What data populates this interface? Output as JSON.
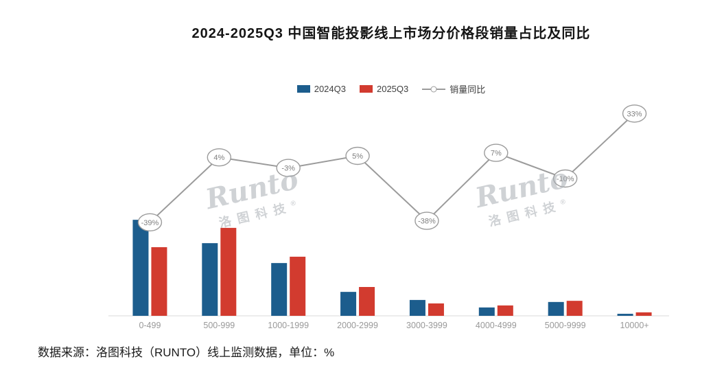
{
  "title": "2024-2025Q3 中国智能投影线上市场分价格段销量占比及同比",
  "footer": "数据来源：洛图科技（RUNTO）线上监测数据，单位：%",
  "watermark": {
    "line1": "Runto",
    "line2": "洛图科技",
    "reg": "®"
  },
  "colors": {
    "bar_2024q3": "#1C5D8D",
    "bar_2025q3": "#D23B2F",
    "yoy_line": "#9B9B9B",
    "axis": "#D9D9D9",
    "axis_label": "#999999"
  },
  "legend": [
    {
      "label": "2024Q3",
      "color": "#1C5D8D",
      "type": "bar"
    },
    {
      "label": "2025Q3",
      "color": "#D23B2F",
      "type": "bar"
    },
    {
      "label": "销量同比",
      "color": "#9B9B9B",
      "type": "line"
    }
  ],
  "chart_data": {
    "type": "bar+line",
    "title": "2024-2025Q3 中国智能投影线上市场分价格段销量占比及同比",
    "categories": [
      "0-499",
      "500-999",
      "1000-1999",
      "2000-2999",
      "3000-3999",
      "4000-4999",
      "5000-9999",
      "10000+"
    ],
    "series": [
      {
        "name": "2024Q3",
        "type": "bar",
        "color": "#1C5D8D",
        "values": [
          33.3,
          25.2,
          18.3,
          8.3,
          5.5,
          2.9,
          4.8,
          0.7
        ]
      },
      {
        "name": "2025Q3",
        "type": "bar",
        "color": "#D23B2F",
        "values": [
          23.8,
          30.5,
          20.5,
          10.0,
          4.3,
          3.6,
          5.2,
          1.2
        ]
      },
      {
        "name": "销量同比",
        "type": "line",
        "color": "#9B9B9B",
        "values": [
          -39,
          4,
          -3,
          5,
          -38,
          7,
          -10,
          33
        ],
        "labels": [
          "-39%",
          "4%",
          "-3%",
          "5%",
          "-38%",
          "7%",
          "-10%",
          "33%"
        ]
      }
    ],
    "unit": "%",
    "xlabel": "",
    "ylabel": "",
    "bar_axis_range": [
      0,
      35
    ],
    "line_axis_range": [
      -60,
      40
    ],
    "grid": false,
    "legend_position": "top"
  }
}
